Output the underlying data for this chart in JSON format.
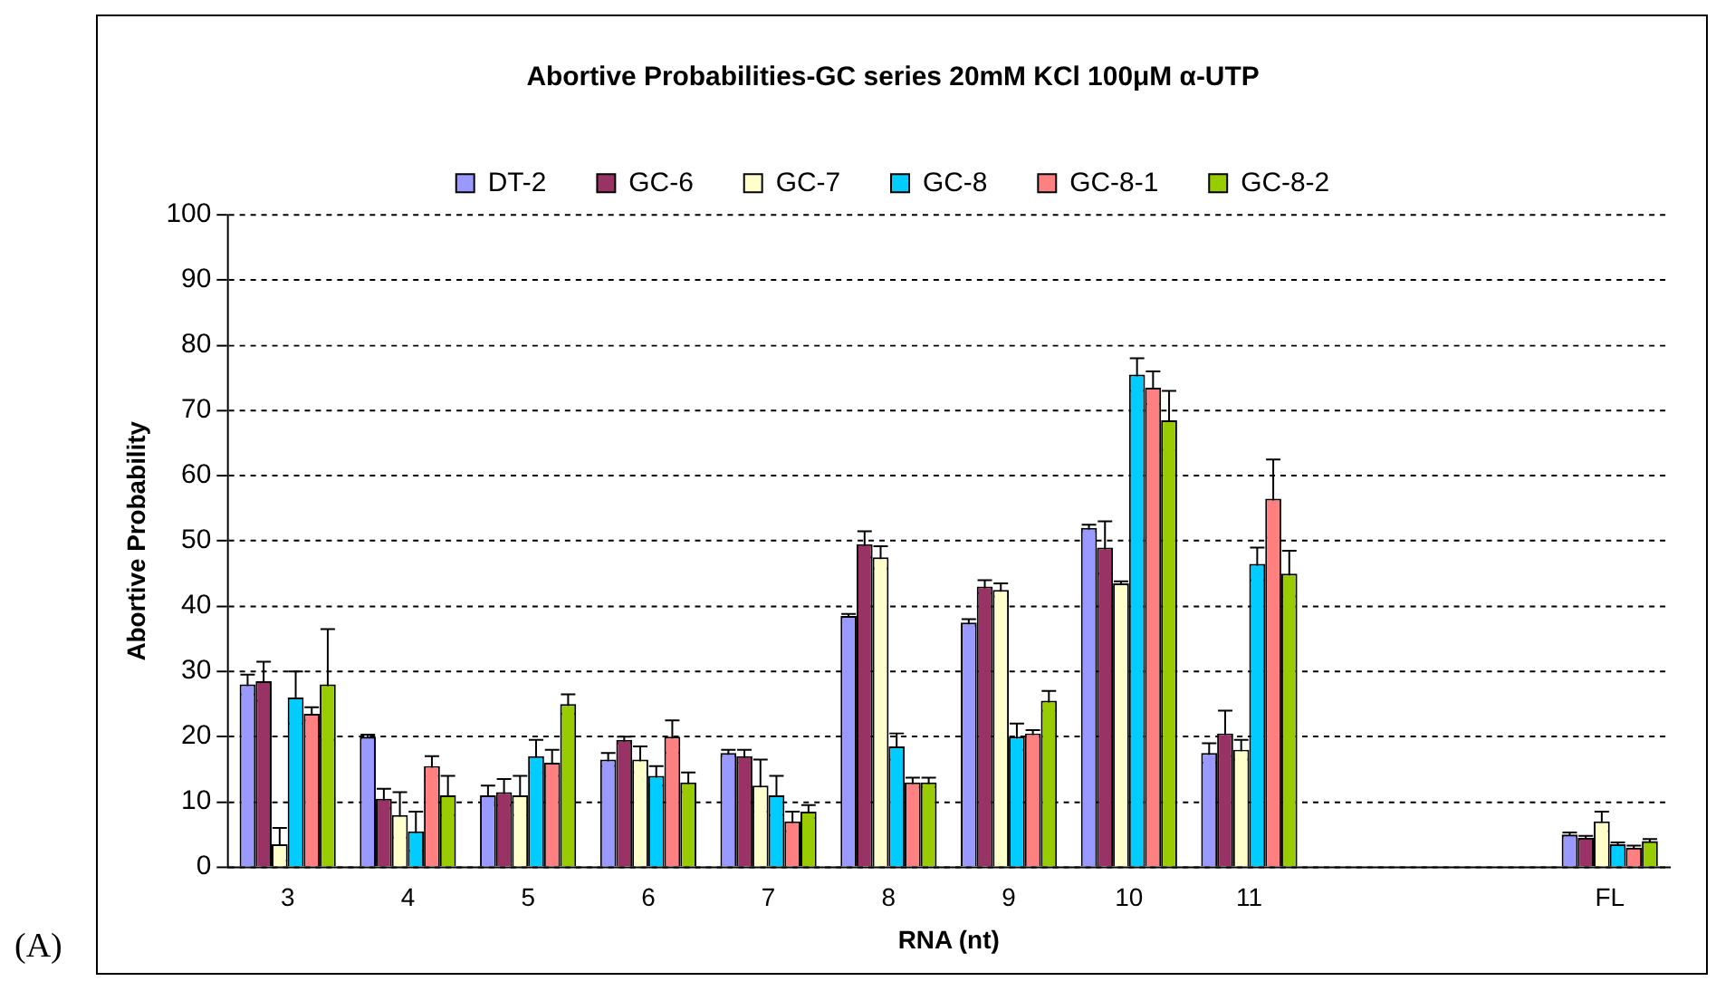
{
  "chart_data": {
    "type": "bar",
    "title": "Abortive Probabilities-GC series 20mM KCl 100μM α-UTP",
    "xlabel": "RNA (nt)",
    "ylabel": "Abortive Probability",
    "categories": [
      "3",
      "4",
      "5",
      "6",
      "7",
      "8",
      "9",
      "10",
      "11",
      null,
      null,
      "FL"
    ],
    "series": [
      {
        "name": "DT-2",
        "color": "#9999ff",
        "values": [
          28,
          20,
          11,
          16.5,
          17.5,
          38.5,
          37.5,
          52,
          17.5,
          null,
          null,
          5
        ],
        "errors": [
          1.5,
          0.3,
          1.5,
          1,
          0.5,
          0.3,
          0.5,
          0.5,
          1.5,
          null,
          null,
          0.3
        ]
      },
      {
        "name": "GC-6",
        "color": "#993366",
        "values": [
          28.5,
          10.5,
          11.5,
          19.5,
          17,
          49.5,
          43,
          49,
          20.5,
          null,
          null,
          4.5
        ],
        "errors": [
          3,
          1.5,
          2,
          0.5,
          1,
          2,
          1,
          4,
          3.5,
          null,
          null,
          0.3
        ]
      },
      {
        "name": "GC-7",
        "color": "#ffffcc",
        "values": [
          3.5,
          8,
          11,
          16.5,
          12.5,
          47.5,
          42.5,
          43.5,
          18,
          null,
          null,
          7
        ],
        "errors": [
          2.5,
          3.5,
          3,
          2,
          4,
          1.7,
          1,
          0.3,
          1.5,
          null,
          null,
          1.5
        ]
      },
      {
        "name": "GC-8",
        "color": "#00ccff",
        "values": [
          26,
          5.5,
          17,
          14,
          11,
          18.5,
          20,
          75.5,
          46.5,
          null,
          null,
          3.5
        ],
        "errors": [
          4,
          3,
          2.5,
          1.5,
          3,
          2,
          2,
          2.5,
          2.5,
          null,
          null,
          0.3
        ]
      },
      {
        "name": "GC-8-1",
        "color": "#ff8080",
        "values": [
          23.5,
          15.5,
          16,
          20,
          7,
          13,
          20.5,
          73.5,
          56.5,
          null,
          null,
          3
        ],
        "errors": [
          1,
          1.5,
          2,
          2.5,
          1.5,
          0.7,
          0.5,
          2.5,
          6,
          null,
          null,
          0.3
        ]
      },
      {
        "name": "GC-8-2",
        "color": "#99cc00",
        "values": [
          28,
          11,
          25,
          13,
          8.5,
          13,
          25.5,
          68.5,
          45,
          null,
          null,
          4
        ],
        "errors": [
          8.5,
          3,
          1.5,
          1.5,
          1,
          0.7,
          1.5,
          4.5,
          3.5,
          null,
          null,
          0.3
        ]
      }
    ],
    "ylim": [
      0,
      100
    ],
    "yticks": [
      0,
      10,
      20,
      30,
      40,
      50,
      60,
      70,
      80,
      90,
      100
    ],
    "grid": "y",
    "legend": "top",
    "annotations": [
      "(A)"
    ]
  }
}
